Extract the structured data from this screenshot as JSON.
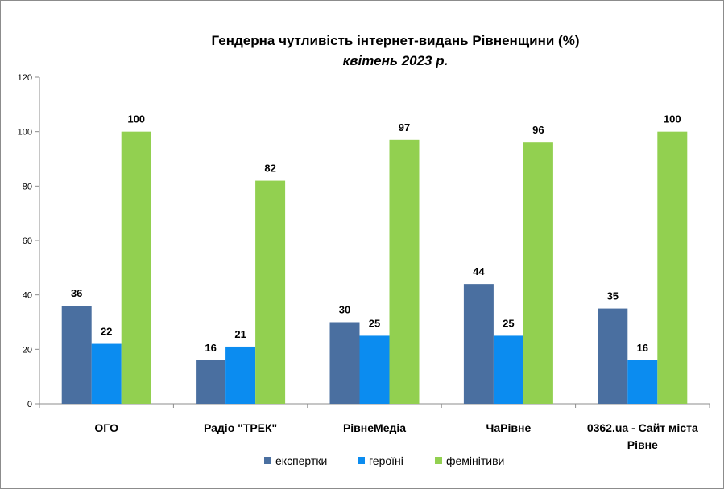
{
  "chart_data": {
    "type": "bar",
    "title": "Гендерна чутливість інтернет-видань Рівненщини (%)",
    "subtitle": "квітень 2023 р.",
    "categories": [
      [
        "ОГО"
      ],
      [
        "Радіо \"ТРЕК\""
      ],
      [
        "РівнеМедіа"
      ],
      [
        "ЧаРівне"
      ],
      [
        "0362.ua - Сайт міста",
        "Рівне"
      ]
    ],
    "series": [
      {
        "name": "експертки",
        "color": "#4a6fa0",
        "values": [
          36,
          16,
          30,
          44,
          35
        ]
      },
      {
        "name": "героїні",
        "color": "#0b8cf0",
        "values": [
          22,
          21,
          25,
          25,
          16
        ]
      },
      {
        "name": "фемінітиви",
        "color": "#92d050",
        "values": [
          100,
          82,
          97,
          96,
          100
        ]
      }
    ],
    "ylim": [
      0,
      120
    ],
    "yticks": [
      0,
      20,
      40,
      60,
      80,
      100,
      120
    ],
    "grid": false,
    "legend": "bottom"
  }
}
